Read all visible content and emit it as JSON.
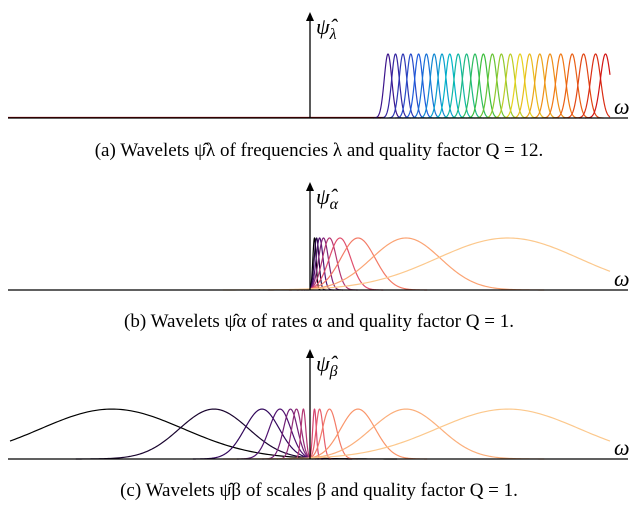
{
  "captions": {
    "a": "(a) Wavelets ψ̂λ of frequencies λ and quality factor Q = 12.",
    "b": "(b) Wavelets ψ̂α of rates α and quality factor Q = 1.",
    "c": "(c) Wavelets ψ̂β of scales β and quality factor Q = 1."
  },
  "axes": {
    "x_symbol": "ω",
    "psi_symbol": "ψ̂",
    "a_sub": "λ",
    "b_sub": "α",
    "c_sub": "β"
  },
  "chart_data": [
    {
      "type": "line",
      "title": "(a) Wavelets ψ̂λ of frequencies λ and quality factor Q = 12.",
      "xlabel": "ω",
      "ylabel": "ψ̂λ",
      "quality_factor": 12,
      "x_range": [
        -1,
        1
      ],
      "ylim": [
        0,
        1
      ],
      "filter_centers": [
        0.26,
        0.285,
        0.31,
        0.336,
        0.362,
        0.388,
        0.414,
        0.44,
        0.466,
        0.494,
        0.522,
        0.55,
        0.578,
        0.608,
        0.638,
        0.668,
        0.7,
        0.732,
        0.766,
        0.8,
        0.836,
        0.874,
        0.912,
        0.952,
        0.985
      ],
      "peak": 1,
      "colormap": "rainbow"
    },
    {
      "type": "line",
      "title": "(b) Wavelets ψ̂α of rates α and quality factor Q = 1.",
      "xlabel": "ω",
      "ylabel": "ψ̂α",
      "quality_factor": 1,
      "x_range": [
        -1,
        1
      ],
      "ylim": [
        0,
        1
      ],
      "filter_centers": [
        0.015,
        0.022,
        0.032,
        0.045,
        0.065,
        0.1,
        0.16,
        0.32,
        0.66
      ],
      "peak": 0.52,
      "colormap": "magma"
    },
    {
      "type": "line",
      "title": "(c) Wavelets ψ̂β of scales β and quality factor Q = 1.",
      "xlabel": "ω",
      "ylabel": "ψ̂β",
      "quality_factor": 1,
      "x_range": [
        -1,
        1
      ],
      "ylim": [
        0,
        1
      ],
      "filter_centers": [
        -0.66,
        -0.32,
        -0.16,
        -0.1,
        -0.065,
        -0.045,
        -0.022,
        0.015,
        0.032,
        0.065,
        0.16,
        0.32,
        0.66
      ],
      "peak": 0.52,
      "colormap": "magma"
    }
  ]
}
